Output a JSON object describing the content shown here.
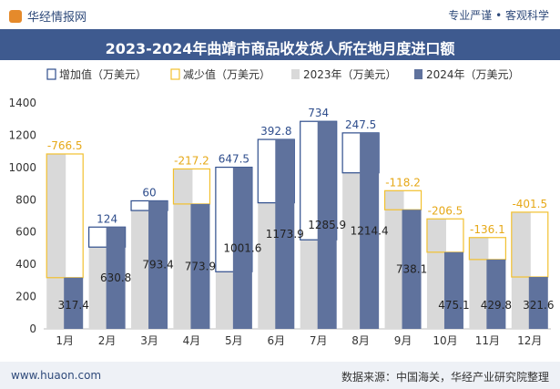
{
  "header": {
    "brand": "华经情报网",
    "slogan": "专业严谨 • 客观科学"
  },
  "title": "2023-2024年曲靖市商品收发货人所在地月度进口额",
  "footer": {
    "website": "www.huaon.com",
    "source": "数据来源：中国海关，华经产业研究院整理"
  },
  "chart_data": {
    "type": "bar",
    "categories": [
      "1月",
      "2月",
      "3月",
      "4月",
      "5月",
      "6月",
      "7月",
      "8月",
      "9月",
      "10月",
      "11月",
      "12月"
    ],
    "series": [
      {
        "name": "2023年（万美元）",
        "values": [
          1083.9,
          506.8,
          733.4,
          991.1,
          354.1,
          781.1,
          551.9,
          966.9,
          856.3,
          681.6,
          565.9,
          723.1
        ],
        "color": "#d9d9d9"
      },
      {
        "name": "2024年（万美元）",
        "values": [
          317.4,
          630.8,
          793.4,
          773.9,
          1001.6,
          1173.9,
          1285.9,
          1214.4,
          738.1,
          475.1,
          429.8,
          321.6
        ],
        "color": "#5f729d"
      }
    ],
    "change": [
      -766.5,
      124,
      60,
      -217.2,
      647.5,
      392.8,
      734,
      247.5,
      -118.2,
      -206.5,
      -136.1,
      -401.5
    ],
    "change_labels": [
      "-766.5",
      "124",
      "60",
      "-217.2",
      "647.5",
      "392.8",
      "734",
      "247.5",
      "-118.2",
      "-206.5",
      "-136.1",
      "-401.5"
    ],
    "value_labels": [
      "317.4",
      "630.8",
      "793.4",
      "773.9",
      "1001.6",
      "1173.9",
      "1285.9",
      "1214.4",
      "738.1",
      "475.1",
      "429.8",
      "321.6"
    ],
    "legend": [
      {
        "label": "增加值（万美元）",
        "kind": "outline",
        "color": "#2e4d8c"
      },
      {
        "label": "减少值（万美元）",
        "kind": "outline",
        "color": "#f2c02e"
      },
      {
        "label": "2023年（万美元）",
        "kind": "fill",
        "color": "#d9d9d9"
      },
      {
        "label": "2024年（万美元）",
        "kind": "fill",
        "color": "#5f729d"
      }
    ],
    "increase_color": "#2e4d8c",
    "decrease_color": "#f2c02e",
    "decrease_label_color": "#e6a817",
    "ylim": [
      0,
      1400
    ],
    "yticks": [
      0,
      200,
      400,
      600,
      800,
      1000,
      1200,
      1400
    ],
    "grid": false,
    "legend_position": "top"
  }
}
